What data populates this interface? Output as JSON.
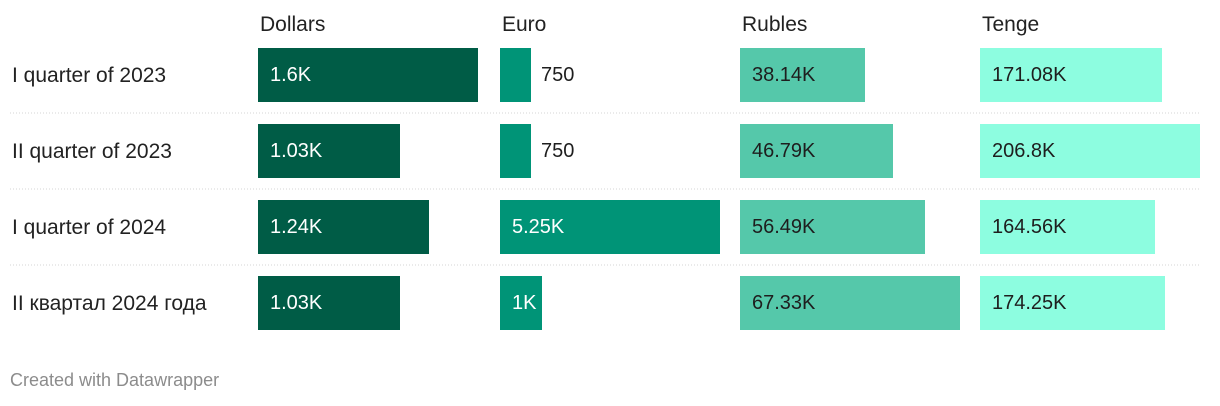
{
  "chart_data": {
    "type": "bar",
    "categories": [
      "I quarter of 2023",
      "II quarter of 2023",
      "I quarter of 2024",
      "II квартал 2024 года"
    ],
    "series": [
      {
        "name": "Dollars",
        "values": [
          1600,
          1030,
          1240,
          1030
        ],
        "labels": [
          "1.6K",
          "1.03K",
          "1.24K",
          "1.03K"
        ],
        "color": "#005c46",
        "label_color": "#ffffff",
        "xlim": [
          0,
          1600
        ]
      },
      {
        "name": "Euro",
        "values": [
          750,
          750,
          5250,
          1000
        ],
        "labels": [
          "750",
          "750",
          "5.25K",
          "1K"
        ],
        "color": "#009477",
        "label_color": "#ffffff",
        "xlim": [
          0,
          5250
        ]
      },
      {
        "name": "Rubles",
        "values": [
          38140,
          46790,
          56490,
          67330
        ],
        "labels": [
          "38.14K",
          "46.79K",
          "56.49K",
          "67.33K"
        ],
        "color": "#55c8aa",
        "label_color": "#1e1e1e",
        "xlim": [
          0,
          67330
        ]
      },
      {
        "name": "Tenge",
        "values": [
          171080,
          206800,
          164560,
          174250
        ],
        "labels": [
          "171.08K",
          "206.8K",
          "164.56K",
          "174.25K"
        ],
        "color": "#8dfde0",
        "label_color": "#1e1e1e",
        "xlim": [
          0,
          206800
        ]
      }
    ],
    "outside_label_color": "#1e1e1e",
    "divider_color": "#d4d4d4"
  },
  "footer": {
    "credit": "Created with Datawrapper"
  }
}
